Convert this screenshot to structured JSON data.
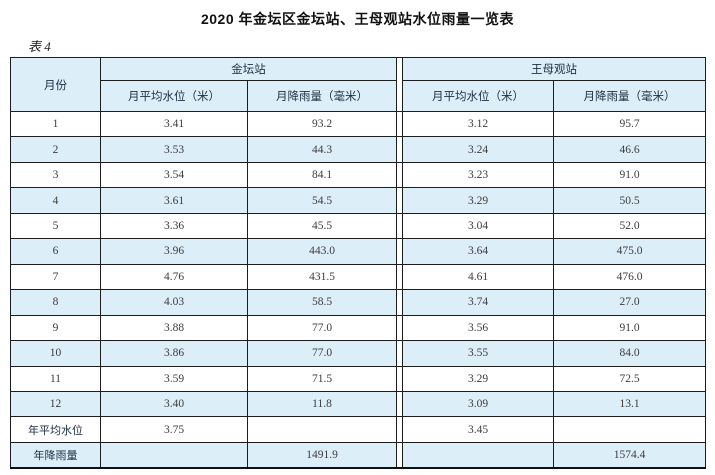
{
  "title": "2020 年金坛区金坛站、王母观站水位雨量一览表",
  "table_label": "表 4",
  "colors": {
    "row_highlight": "#dceef8",
    "border": "#1d1d1d",
    "header_text": "#203043",
    "number_text": "#3d3d3d"
  },
  "table": {
    "col_month": "月份",
    "stations": [
      {
        "name": "金坛站",
        "col_level": "月平均水位（米）",
        "col_rain": "月降雨量（毫米）"
      },
      {
        "name": "王母观站",
        "col_level": "月平均水位（米）",
        "col_rain": "月降雨量（毫米）"
      }
    ],
    "rows": [
      [
        "1",
        "3.41",
        "93.2",
        "3.12",
        "95.7"
      ],
      [
        "2",
        "3.53",
        "44.3",
        "3.24",
        "46.6"
      ],
      [
        "3",
        "3.54",
        "84.1",
        "3.23",
        "91.0"
      ],
      [
        "4",
        "3.61",
        "54.5",
        "3.29",
        "50.5"
      ],
      [
        "5",
        "3.36",
        "45.5",
        "3.04",
        "52.0"
      ],
      [
        "6",
        "3.96",
        "443.0",
        "3.64",
        "475.0"
      ],
      [
        "7",
        "4.76",
        "431.5",
        "4.61",
        "476.0"
      ],
      [
        "8",
        "4.03",
        "58.5",
        "3.74",
        "27.0"
      ],
      [
        "9",
        "3.88",
        "77.0",
        "3.56",
        "91.0"
      ],
      [
        "10",
        "3.86",
        "77.0",
        "3.55",
        "84.0"
      ],
      [
        "11",
        "3.59",
        "71.5",
        "3.29",
        "72.5"
      ],
      [
        "12",
        "3.40",
        "11.8",
        "3.09",
        "13.1"
      ],
      [
        "年平均水位",
        "3.75",
        "",
        "3.45",
        ""
      ],
      [
        "年降雨量",
        "",
        "1491.9",
        "",
        "1574.4"
      ]
    ]
  }
}
